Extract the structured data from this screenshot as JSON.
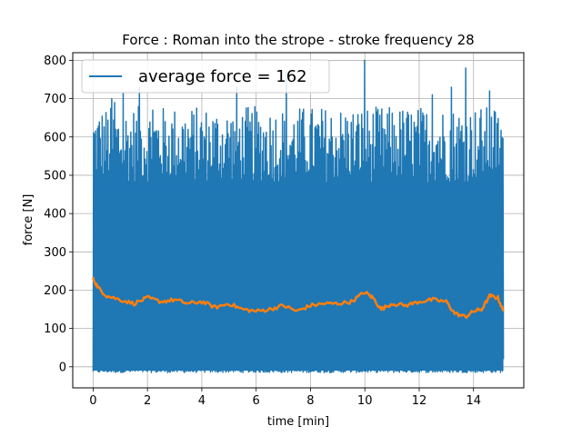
{
  "chart_data": {
    "type": "line",
    "title": "Force : Roman into the strope - stroke frequency 28",
    "xlabel": "time [min]",
    "ylabel": "force [N]",
    "xlim": [
      -0.75,
      15.85
    ],
    "ylim": [
      -55,
      820
    ],
    "xticks": [
      0,
      2,
      4,
      6,
      8,
      10,
      12,
      14
    ],
    "yticks": [
      0,
      100,
      200,
      300,
      400,
      500,
      600,
      700,
      800
    ],
    "grid": true,
    "legend": {
      "placement": "top-left",
      "entries": [
        "average force = 162"
      ]
    },
    "series": [
      {
        "name": "average force = 162",
        "color": "#1f77b4",
        "kind": "raw force",
        "x_range": [
          0,
          15.1
        ],
        "min": -15,
        "typical_peak_range": [
          480,
          680
        ],
        "spikes": [
          {
            "x": 0.7,
            "y": 700
          },
          {
            "x": 0.8,
            "y": 690
          },
          {
            "x": 1.1,
            "y": 715
          },
          {
            "x": 1.7,
            "y": 730
          },
          {
            "x": 2.2,
            "y": 670
          },
          {
            "x": 5.3,
            "y": 730
          },
          {
            "x": 7.1,
            "y": 770
          },
          {
            "x": 10.0,
            "y": 800
          },
          {
            "x": 12.5,
            "y": 710
          },
          {
            "x": 13.2,
            "y": 730
          },
          {
            "x": 13.7,
            "y": 780
          },
          {
            "x": 14.6,
            "y": 720
          }
        ]
      },
      {
        "name": "",
        "color": "#ff7f0e",
        "kind": "moving average",
        "x": [
          0,
          0.2,
          0.5,
          1.0,
          1.5,
          2.0,
          2.5,
          3.0,
          3.5,
          4.0,
          4.5,
          5.0,
          5.5,
          6.0,
          6.5,
          7.0,
          7.5,
          8.0,
          8.5,
          9.0,
          9.5,
          10.0,
          10.3,
          10.6,
          11.0,
          11.5,
          12.0,
          12.5,
          13.0,
          13.3,
          13.7,
          14.0,
          14.3,
          14.6,
          14.9,
          15.1
        ],
        "values": [
          230,
          205,
          185,
          175,
          165,
          180,
          170,
          175,
          165,
          170,
          155,
          165,
          150,
          145,
          150,
          160,
          145,
          160,
          165,
          165,
          170,
          195,
          180,
          150,
          165,
          160,
          170,
          175,
          170,
          140,
          130,
          145,
          150,
          185,
          180,
          145
        ]
      }
    ]
  }
}
